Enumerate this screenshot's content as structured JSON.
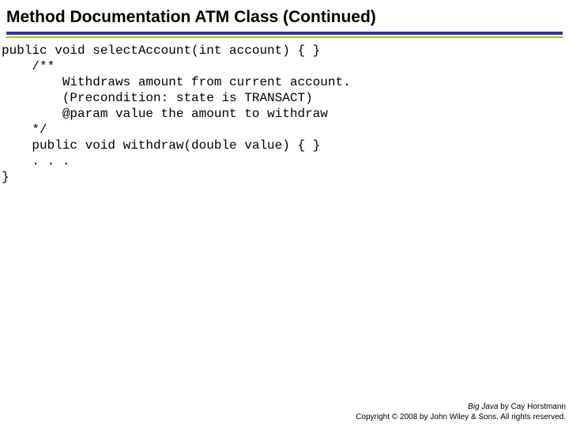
{
  "title": "Method Documentation ATM Class (Continued)",
  "colors": {
    "rule_thick": "#333399",
    "rule_thin": "#99cc00",
    "background": "#ffffff",
    "text": "#000000"
  },
  "code": {
    "lines": [
      "public void selectAccount(int account) { }",
      "    /**",
      "        Withdraws amount from current account.",
      "        (Precondition: state is TRANSACT)",
      "        @param value the amount to withdraw",
      "    */",
      "    public void withdraw(double value) { }",
      "    . . .",
      "}"
    ]
  },
  "footer": {
    "book_title": "Big Java",
    "author_line": " by Cay Horstmann",
    "copyright_line": "Copyright © 2008 by John Wiley & Sons. All rights reserved."
  }
}
